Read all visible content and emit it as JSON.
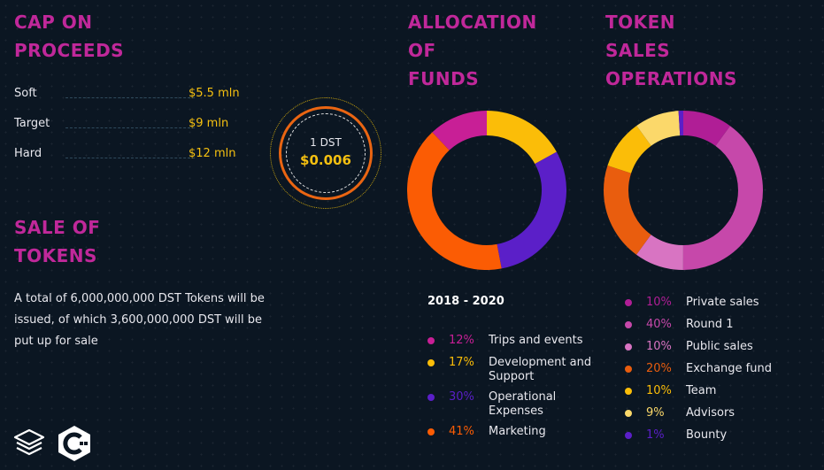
{
  "headings": {
    "cap": "CAP ON\nPROCEEDS",
    "sale": "SALE OF\nTOKENS",
    "allocation": "ALLOCATION\nOF\nFUNDS",
    "operations": "TOKEN\nSALES\nOPERATIONS"
  },
  "cap_rows": [
    {
      "label": "Soft",
      "value": "$5.5 mln"
    },
    {
      "label": "Target",
      "value": "$9 mln"
    },
    {
      "label": "Hard",
      "value": "$12 mln"
    }
  ],
  "price": {
    "unit": "1 DST",
    "value": "$0.006"
  },
  "sale_text": "A total of 6,000,000,000 DST Tokens will be issued, of which 3,600,000,000 DST will be put up for sale",
  "period": "2018 - 2020",
  "allocation_legend": [
    {
      "pct": "12%",
      "name": "Trips and events"
    },
    {
      "pct": "17%",
      "name": "Development and Support"
    },
    {
      "pct": "30%",
      "name": "Operational Expenses"
    },
    {
      "pct": "41%",
      "name": "Marketing"
    }
  ],
  "operations_legend": [
    {
      "pct": "10%",
      "name": "Private sales"
    },
    {
      "pct": "40%",
      "name": "Round 1"
    },
    {
      "pct": "10%",
      "name": "Public sales"
    },
    {
      "pct": "20%",
      "name": "Exchange fund"
    },
    {
      "pct": "10%",
      "name": "Team"
    },
    {
      "pct": "9%",
      "name": "Advisors"
    },
    {
      "pct": "1%",
      "name": "Bounty"
    }
  ],
  "chart_data": [
    {
      "type": "pie",
      "categories": [
        "Trips and events",
        "Development and Support",
        "Operational Expenses",
        "Marketing"
      ],
      "values": [
        12,
        17,
        30,
        41
      ],
      "colors": [
        "#c81f96",
        "#fbbd08",
        "#5b1fc8",
        "#fb5c04"
      ]
    },
    {
      "type": "pie",
      "categories": [
        "Private sales",
        "Round 1",
        "Public sales",
        "Exchange fund",
        "Team",
        "Advisors",
        "Bounty"
      ],
      "values": [
        10,
        40,
        10,
        20,
        10,
        9,
        1
      ],
      "colors": [
        "#b01e96",
        "#c648aa",
        "#d874c2",
        "#e95d0e",
        "#fbbd08",
        "#fbd86a",
        "#5b1fc8"
      ]
    }
  ],
  "icons": [
    "layers-icon",
    "code-logo-icon"
  ]
}
